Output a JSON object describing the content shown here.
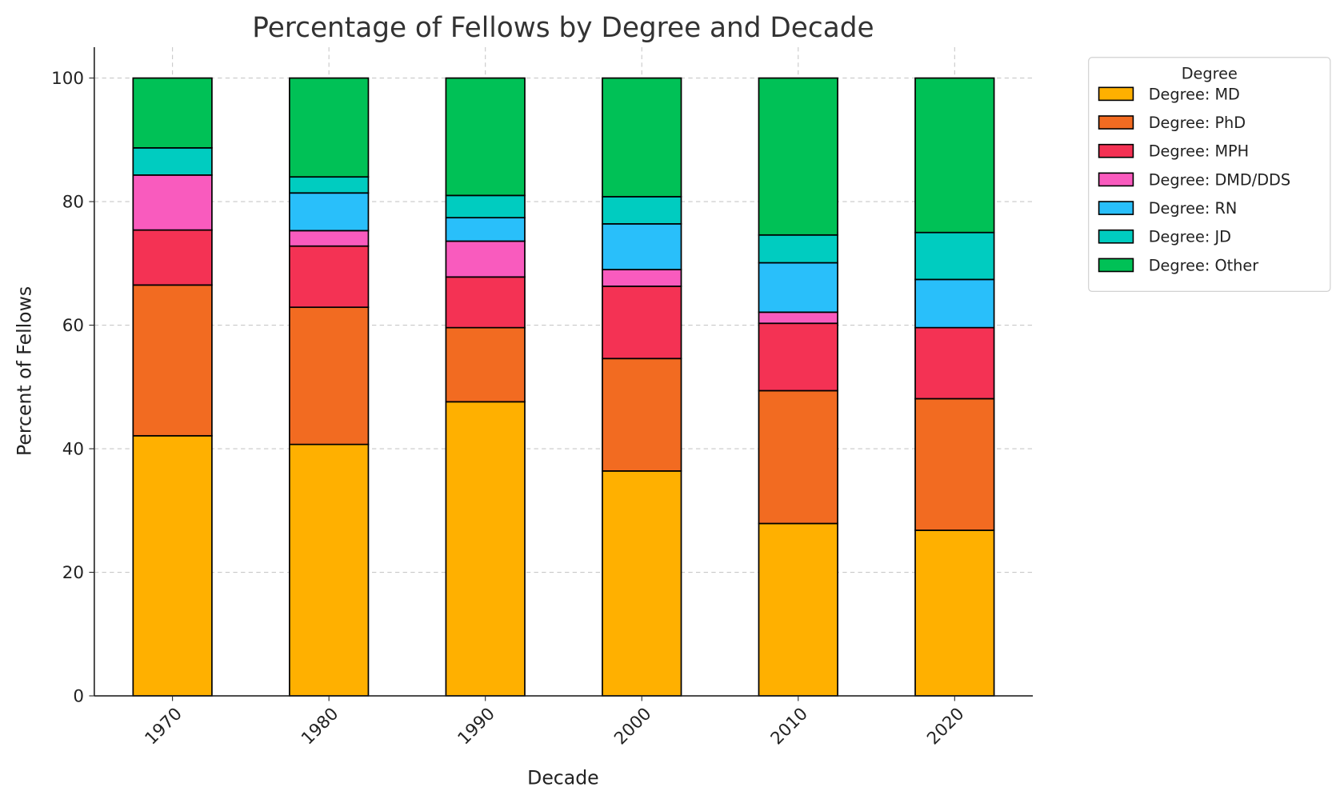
{
  "chart_data": {
    "type": "bar",
    "stacked": true,
    "title": "Percentage of Fellows by Degree and Decade",
    "xlabel": "Decade",
    "ylabel": "Percent of Fellows",
    "ylim": [
      0,
      105
    ],
    "yticks": [
      0,
      20,
      40,
      60,
      80,
      100
    ],
    "grid": true,
    "categories": [
      "1970",
      "1980",
      "1990",
      "2000",
      "2010",
      "2020"
    ],
    "legend": {
      "title": "Degree",
      "placement": "outside-top-right"
    },
    "series": [
      {
        "name": "Degree: MD",
        "color": "#FFB000",
        "values": [
          42.1,
          40.7,
          47.6,
          36.4,
          27.9,
          26.8
        ]
      },
      {
        "name": "Degree: PhD",
        "color": "#F26B21",
        "values": [
          24.4,
          22.2,
          12.0,
          18.2,
          21.5,
          21.3
        ]
      },
      {
        "name": "Degree: MPH",
        "color": "#F43254",
        "values": [
          8.9,
          9.9,
          8.2,
          11.7,
          10.9,
          11.5
        ]
      },
      {
        "name": "Degree: DMD/DDS",
        "color": "#F95BBE",
        "values": [
          8.9,
          2.5,
          5.8,
          2.7,
          1.8,
          0
        ]
      },
      {
        "name": "Degree: RN",
        "color": "#29BFFA",
        "values": [
          0,
          6.1,
          3.8,
          7.4,
          8.0,
          7.8
        ]
      },
      {
        "name": "Degree: JD",
        "color": "#00CCC0",
        "values": [
          4.4,
          2.6,
          3.6,
          4.4,
          4.5,
          7.6
        ]
      },
      {
        "name": "Degree: Other",
        "color": "#00C156",
        "values": [
          11.3,
          16.0,
          19.0,
          19.2,
          25.4,
          25.0
        ]
      }
    ]
  }
}
